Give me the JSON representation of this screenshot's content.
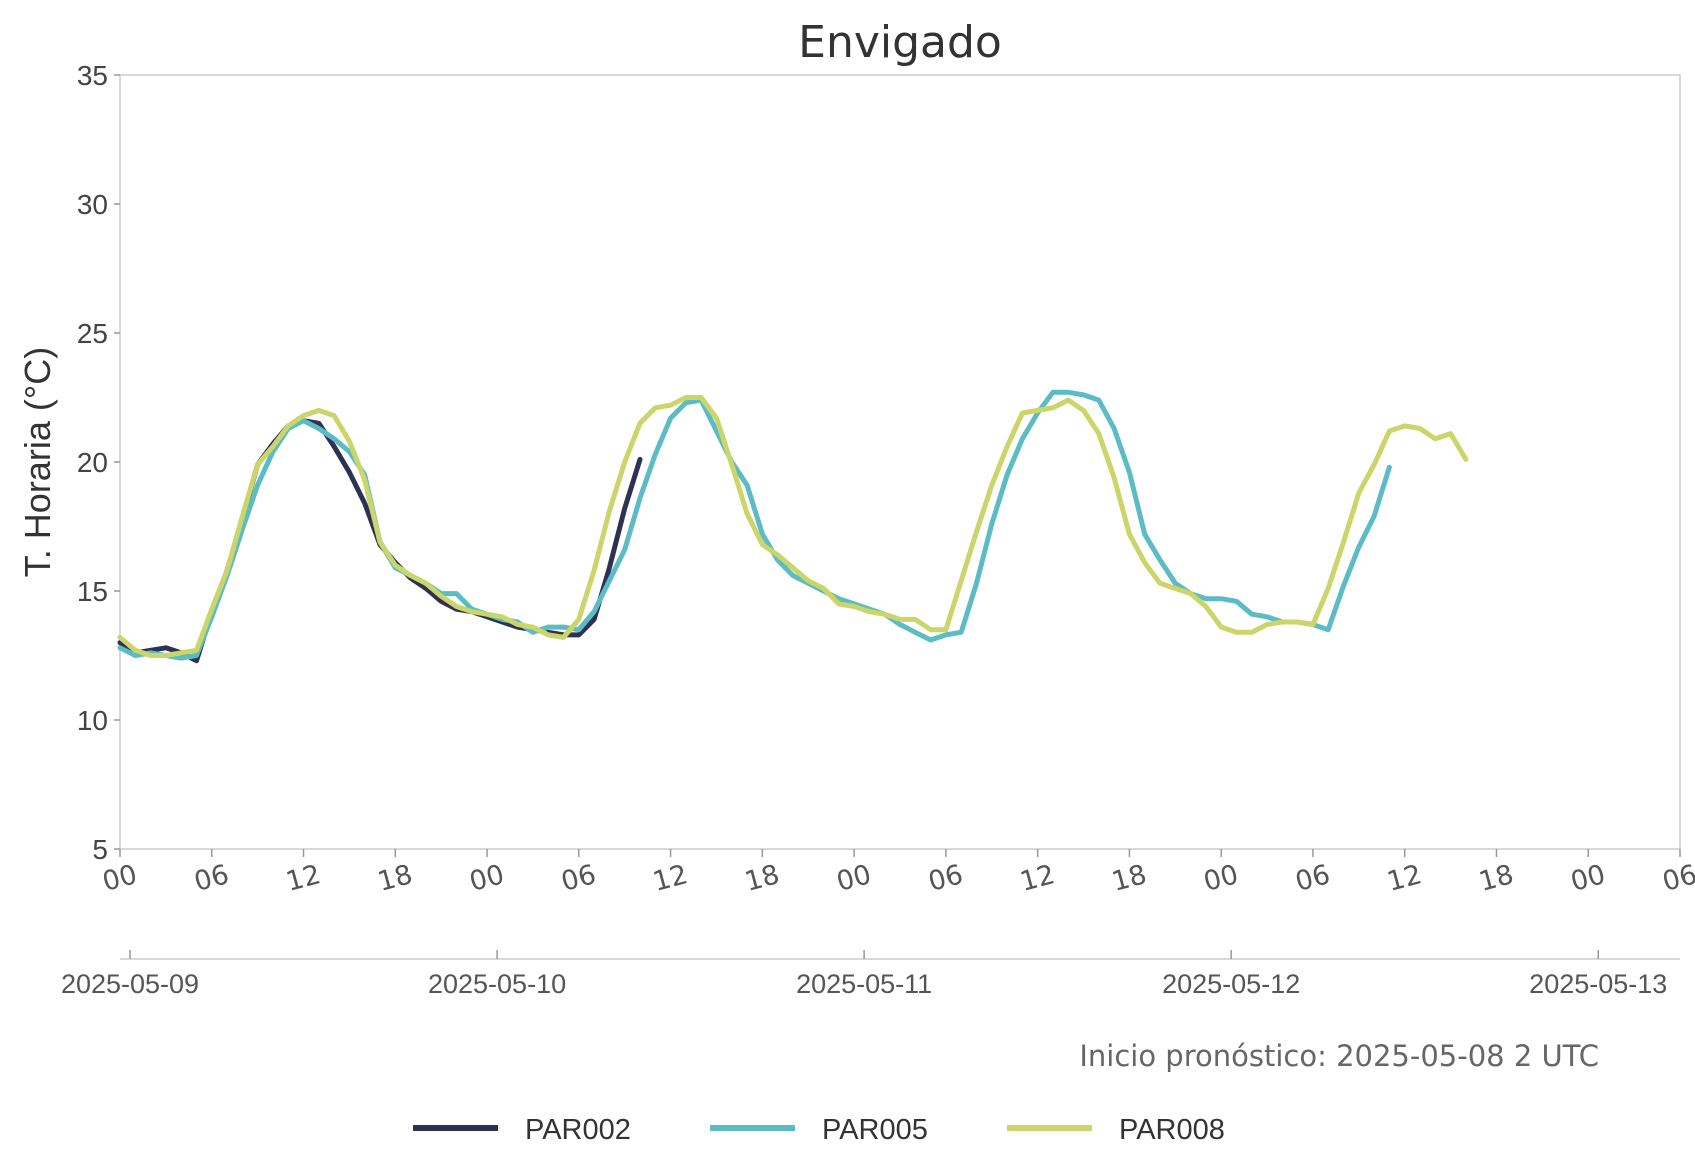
{
  "chart_data": {
    "type": "line",
    "title": "Envigado",
    "ylabel": "T. Horaria (°C)",
    "xlabel": "",
    "ylim": [
      5,
      35
    ],
    "yticks": [
      5,
      10,
      15,
      20,
      25,
      30,
      35
    ],
    "xlim_hours": [
      0,
      102
    ],
    "x_hour_tick_labels": [
      "00",
      "06",
      "12",
      "18",
      "00",
      "06",
      "12",
      "18",
      "00",
      "06",
      "12",
      "18",
      "00",
      "06",
      "12",
      "18",
      "00",
      "06"
    ],
    "x_date_tick_labels": [
      "2025-05-09",
      "2025-05-10",
      "2025-05-11",
      "2025-05-12",
      "2025-05-13"
    ],
    "x_start": "2025-05-09 00:00",
    "grid": false,
    "legend_position": "bottom-center",
    "annotation": "Inicio pronóstico: 2025-05-08 2 UTC",
    "series": [
      {
        "name": "PAR002",
        "color": "#2d3252",
        "x": [
          0,
          1,
          2,
          3,
          4,
          5,
          6,
          7,
          8,
          9,
          10,
          11,
          12,
          13,
          14,
          15,
          16,
          17,
          18,
          19,
          20,
          21,
          22,
          23,
          24,
          25,
          26,
          27,
          28,
          29,
          30,
          31,
          32,
          33,
          34
        ],
        "y": [
          13.0,
          12.6,
          12.7,
          12.8,
          12.6,
          12.3,
          14.2,
          15.8,
          17.8,
          19.9,
          20.7,
          21.4,
          21.6,
          21.5,
          20.6,
          19.6,
          18.4,
          16.8,
          16.1,
          15.5,
          15.1,
          14.6,
          14.3,
          14.2,
          14.0,
          13.8,
          13.6,
          13.5,
          13.4,
          13.3,
          13.3,
          13.9,
          15.9,
          18.2,
          20.1
        ]
      },
      {
        "name": "PAR005",
        "color": "#5bbcc5",
        "x": [
          0,
          1,
          2,
          3,
          4,
          5,
          6,
          7,
          8,
          9,
          10,
          11,
          12,
          13,
          14,
          15,
          16,
          17,
          18,
          19,
          20,
          21,
          22,
          23,
          24,
          25,
          26,
          27,
          28,
          29,
          30,
          31,
          32,
          33,
          34,
          35,
          36,
          37,
          38,
          39,
          40,
          41,
          42,
          43,
          44,
          45,
          46,
          47,
          48,
          49,
          50,
          51,
          52,
          53,
          54,
          55,
          56,
          57,
          58,
          59,
          60,
          61,
          62,
          63,
          64,
          65,
          66,
          67,
          68,
          69,
          70,
          71,
          72,
          73,
          74,
          75,
          76,
          77,
          78,
          79,
          80,
          81,
          82,
          83
        ],
        "y": [
          12.8,
          12.5,
          12.6,
          12.5,
          12.4,
          12.5,
          14.0,
          15.6,
          17.4,
          19.1,
          20.4,
          21.3,
          21.6,
          21.3,
          20.9,
          20.4,
          19.5,
          16.9,
          15.9,
          15.6,
          15.3,
          14.9,
          14.9,
          14.3,
          14.1,
          13.9,
          13.8,
          13.4,
          13.6,
          13.6,
          13.5,
          14.2,
          15.4,
          16.6,
          18.6,
          20.3,
          21.7,
          22.3,
          22.4,
          21.2,
          20.0,
          19.1,
          17.2,
          16.2,
          15.6,
          15.3,
          15.0,
          14.7,
          14.5,
          14.3,
          14.1,
          13.7,
          13.4,
          13.1,
          13.3,
          13.4,
          15.3,
          17.6,
          19.5,
          20.9,
          21.9,
          22.7,
          22.7,
          22.6,
          22.4,
          21.3,
          19.6,
          17.2,
          16.2,
          15.3,
          14.9,
          14.7,
          14.7,
          14.6,
          14.1,
          14.0,
          13.8,
          13.8,
          13.7,
          13.5,
          15.2,
          16.7,
          17.9,
          19.8
        ]
      },
      {
        "name": "PAR008",
        "color": "#cbd56a",
        "x": [
          0,
          1,
          2,
          3,
          4,
          5,
          6,
          7,
          8,
          9,
          10,
          11,
          12,
          13,
          14,
          15,
          16,
          17,
          18,
          19,
          20,
          21,
          22,
          23,
          24,
          25,
          26,
          27,
          28,
          29,
          30,
          31,
          32,
          33,
          34,
          35,
          36,
          37,
          38,
          39,
          40,
          41,
          42,
          43,
          44,
          45,
          46,
          47,
          48,
          49,
          50,
          51,
          52,
          53,
          54,
          55,
          56,
          57,
          58,
          59,
          60,
          61,
          62,
          63,
          64,
          65,
          66,
          67,
          68,
          69,
          70,
          71,
          72,
          73,
          74,
          75,
          76,
          77,
          78,
          79,
          80,
          81,
          82,
          83,
          84,
          85,
          86,
          87,
          88
        ],
        "y": [
          13.2,
          12.7,
          12.5,
          12.5,
          12.6,
          12.7,
          14.3,
          15.8,
          17.9,
          19.9,
          20.6,
          21.4,
          21.8,
          22.0,
          21.8,
          20.8,
          19.3,
          16.9,
          16.0,
          15.6,
          15.3,
          14.8,
          14.4,
          14.2,
          14.1,
          14.0,
          13.7,
          13.6,
          13.3,
          13.2,
          13.9,
          15.8,
          18.1,
          20.0,
          21.5,
          22.1,
          22.2,
          22.5,
          22.5,
          21.7,
          19.9,
          18.0,
          16.8,
          16.4,
          15.9,
          15.4,
          15.1,
          14.5,
          14.4,
          14.2,
          14.1,
          13.9,
          13.9,
          13.5,
          13.5,
          15.4,
          17.3,
          19.1,
          20.6,
          21.9,
          22.0,
          22.1,
          22.4,
          22.0,
          21.1,
          19.4,
          17.2,
          16.1,
          15.3,
          15.1,
          14.9,
          14.4,
          13.6,
          13.4,
          13.4,
          13.7,
          13.8,
          13.8,
          13.7,
          15.1,
          16.9,
          18.8,
          19.9,
          21.2,
          21.4,
          21.3,
          20.9,
          21.1,
          20.1
        ]
      }
    ]
  }
}
